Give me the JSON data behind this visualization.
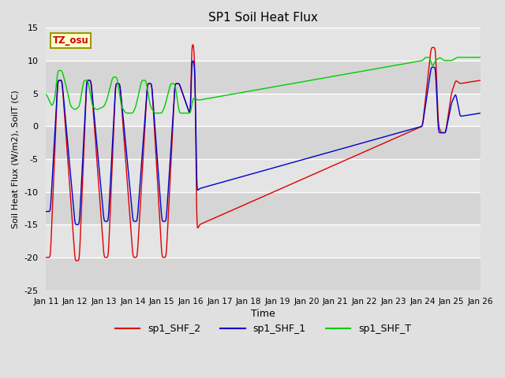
{
  "title": "SP1 Soil Heat Flux",
  "xlabel": "Time",
  "ylabel": "Soil Heat Flux (W/m2), SoilT (C)",
  "ylim": [
    -25,
    15
  ],
  "xlim": [
    0,
    15
  ],
  "tick_labels": [
    "Jan 11",
    "Jan 12",
    "Jan 13",
    "Jan 14",
    "Jan 15",
    "Jan 16",
    "Jan 17",
    "Jan 18",
    "Jan 19",
    "Jan 20",
    "Jan 21",
    "Jan 22",
    "Jan 23",
    "Jan 24",
    "Jan 25",
    "Jan 26"
  ],
  "bg_color": "#e0e0e0",
  "plot_bg_color": "#e0e0e0",
  "grid_color": "#ffffff",
  "tz_label": "TZ_osu",
  "tz_box_color": "#ffffcc",
  "tz_text_color": "#cc0000",
  "legend": [
    {
      "label": "sp1_SHF_2",
      "color": "#dd0000"
    },
    {
      "label": "sp1_SHF_1",
      "color": "#0000cc"
    },
    {
      "label": "sp1_SHF_T",
      "color": "#00cc00"
    }
  ],
  "shf2_x": [
    0,
    0.15,
    0.4,
    0.55,
    1.0,
    1.15,
    1.4,
    1.55,
    2.0,
    2.15,
    2.4,
    2.55,
    3.0,
    3.15,
    3.5,
    3.65,
    4.0,
    4.15,
    4.45,
    4.6,
    4.95,
    5.0,
    5.02,
    5.1,
    5.15,
    5.2,
    5.3,
    13.0,
    13.15,
    13.3,
    13.45,
    13.55,
    13.65,
    13.8,
    14.0,
    14.15,
    14.3,
    15.0
  ],
  "shf2_y": [
    -20,
    -20,
    7,
    7,
    -20.5,
    -20.5,
    7,
    7,
    -20,
    -20,
    6.5,
    6.5,
    -20,
    -20,
    6.5,
    6.5,
    -20,
    -20,
    6.5,
    6.5,
    2,
    2,
    12.5,
    12.5,
    8,
    -16,
    -15,
    0,
    6,
    12,
    12,
    0,
    -1,
    -1,
    5,
    7,
    6.5,
    7
  ],
  "shf1_x": [
    0,
    0.15,
    0.4,
    0.55,
    1.0,
    1.15,
    1.4,
    1.55,
    2.0,
    2.15,
    2.4,
    2.55,
    3.0,
    3.15,
    3.5,
    3.65,
    4.0,
    4.15,
    4.45,
    4.6,
    4.95,
    5.0,
    5.02,
    5.1,
    5.15,
    5.2,
    5.3,
    13.0,
    13.15,
    13.3,
    13.45,
    13.55,
    13.65,
    13.8,
    14.0,
    14.15,
    14.3,
    15.0
  ],
  "shf1_y": [
    -13,
    -13,
    7,
    7,
    -15,
    -15,
    7,
    7,
    -14.5,
    -14.5,
    6.5,
    6.5,
    -14.5,
    -14.5,
    6.5,
    6.5,
    -14.5,
    -14.5,
    6.5,
    6.5,
    2,
    2,
    10,
    10,
    8,
    -10,
    -9.5,
    0,
    4.5,
    9,
    9,
    -1,
    -1,
    -1,
    3.5,
    5,
    1.5,
    2
  ],
  "shft_x": [
    0,
    0.05,
    0.2,
    0.3,
    0.4,
    0.55,
    0.7,
    0.85,
    1.0,
    1.15,
    1.3,
    1.45,
    1.6,
    1.75,
    2.0,
    2.1,
    2.3,
    2.45,
    2.6,
    2.75,
    3.0,
    3.1,
    3.3,
    3.45,
    3.6,
    3.75,
    4.0,
    4.1,
    4.3,
    4.45,
    4.6,
    4.75,
    5.0,
    5.05,
    5.15,
    5.2,
    5.3,
    13.0,
    13.1,
    13.25,
    13.35,
    13.45,
    13.6,
    13.75,
    14.0,
    14.2,
    14.4,
    14.6,
    15.0
  ],
  "shft_y": [
    5,
    4.5,
    3,
    4,
    8.5,
    8.5,
    6,
    3,
    2.5,
    3,
    7,
    7,
    3,
    2.5,
    3,
    4,
    7.5,
    7.5,
    3,
    2,
    2,
    3,
    7,
    7,
    3,
    2,
    2,
    3,
    6.5,
    6.5,
    2,
    2,
    2,
    4,
    4.5,
    4,
    4,
    10,
    10.5,
    10.5,
    9,
    10,
    10.5,
    10,
    10,
    10.5,
    10.5,
    10.5,
    10.5
  ]
}
